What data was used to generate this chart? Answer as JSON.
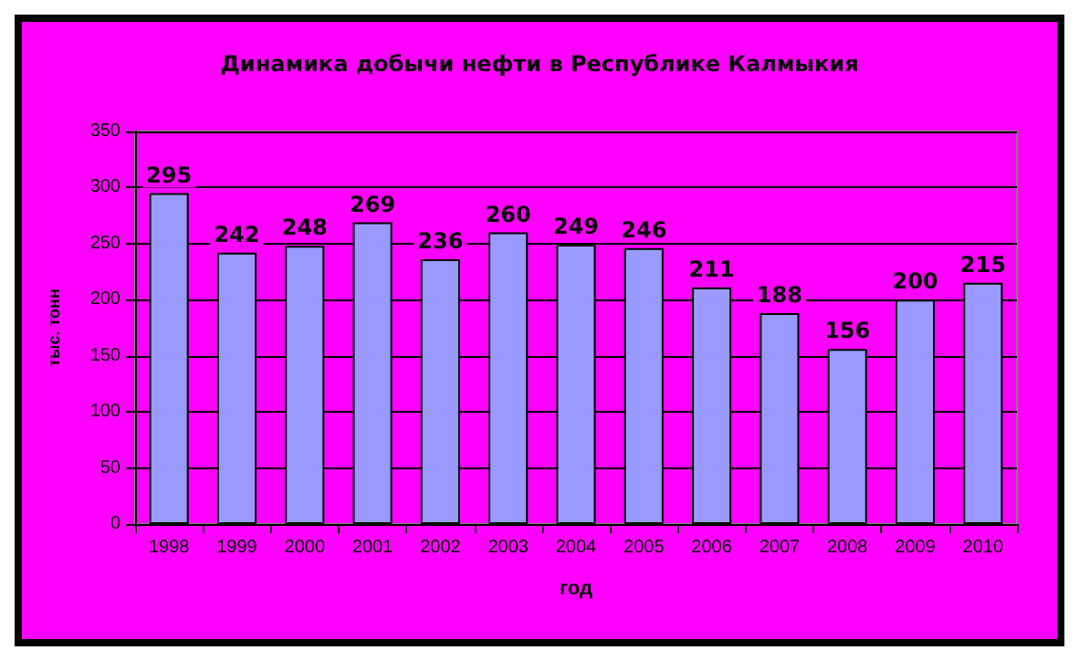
{
  "chart_data": {
    "type": "bar",
    "title": "Динамика добычи нефти в Республике Калмыкия",
    "xlabel": "год",
    "ylabel": "тыс. тонн",
    "categories": [
      "1998",
      "1999",
      "2000",
      "2001",
      "2002",
      "2003",
      "2004",
      "2005",
      "2006",
      "2007",
      "2008",
      "2009",
      "2010"
    ],
    "values": [
      295,
      242,
      248,
      269,
      236,
      260,
      249,
      246,
      211,
      188,
      156,
      200,
      215
    ],
    "color": "#9999ff",
    "ylim": [
      0,
      350
    ],
    "yticks": [
      0,
      50,
      100,
      150,
      200,
      250,
      300,
      350
    ],
    "grid": "y",
    "data_labels": true
  }
}
